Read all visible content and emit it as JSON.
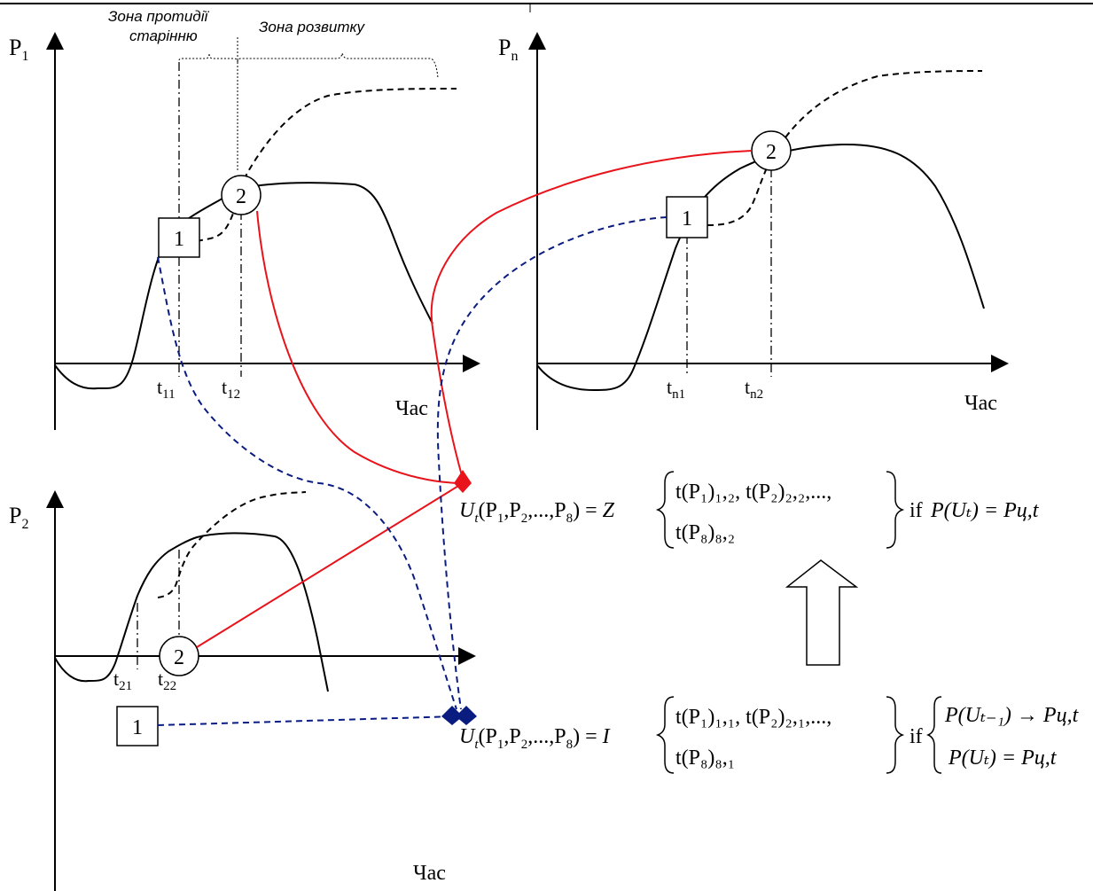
{
  "zones": {
    "opposition": [
      "Зона протидії",
      "старінню"
    ],
    "development": "Зона розвитку"
  },
  "panels": {
    "p1": {
      "axis_label": "P",
      "axis_sub": "1",
      "time_label": "Час",
      "ticks": [
        {
          "base": "t",
          "sub": "11"
        },
        {
          "base": "t",
          "sub": "12"
        }
      ],
      "node1": "1",
      "node2": "2"
    },
    "pn": {
      "axis_label": "P",
      "axis_sub": "n",
      "time_label": "Час",
      "ticks": [
        {
          "base": "t",
          "sub": "n1"
        },
        {
          "base": "t",
          "sub": "n2"
        }
      ],
      "node1": "1",
      "node2": "2"
    },
    "p2": {
      "axis_label": "P",
      "axis_sub": "2",
      "time_label": "Час",
      "ticks": [
        {
          "base": "t",
          "sub": "21"
        },
        {
          "base": "t",
          "sub": "22"
        }
      ],
      "node1": "1",
      "node2": "2"
    }
  },
  "formulas": {
    "upper": {
      "lhs": "U",
      "lhs_sub": "t",
      "args": "(P",
      "op": "Z",
      "brace_line1": "t(P₁)₁,₂, t(P₂)₂,₂,...,",
      "brace_line2": "t(P₈)₈,₂",
      "cond_prefix": "if",
      "cond": "P(Uₜ) = Pц,t"
    },
    "lower": {
      "lhs": "U",
      "lhs_sub": "t",
      "op": "I",
      "brace_line1": "t(P₁)₁,₁, t(P₂)₂,₁,...,",
      "brace_line2": "t(P₈)₈,₁",
      "cond_prefix": "if",
      "cond1": "P(Uₜ₋₁) → Pц,t",
      "cond2": "P(Uₜ) = Pц,t"
    }
  },
  "colors": {
    "line": "#000000",
    "red_link": "#e8131b",
    "blue_link": "#0b1c80"
  }
}
